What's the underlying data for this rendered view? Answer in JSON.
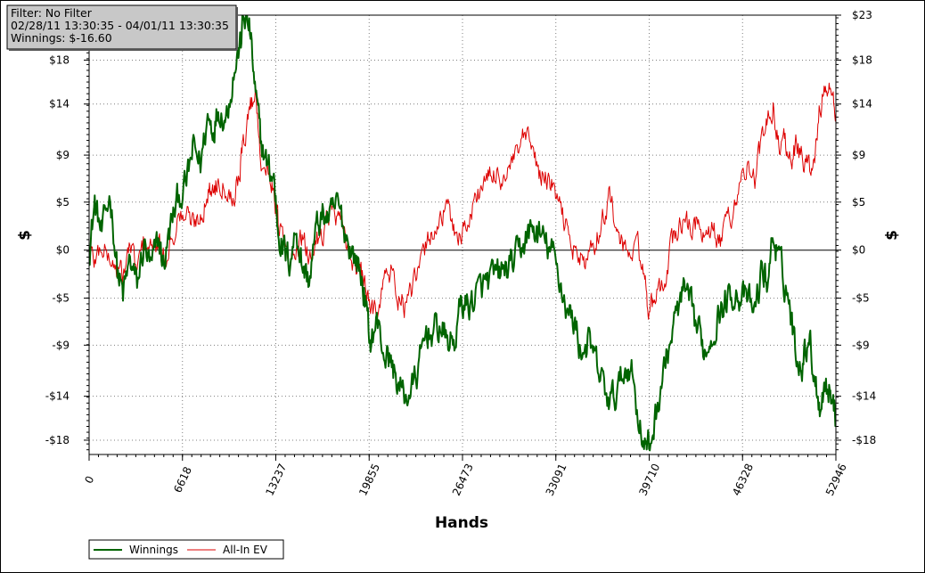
{
  "info_box": {
    "filter": "Filter: No Filter",
    "date_range": "02/28/11 13:30:35 - 04/01/11 13:30:35",
    "winnings": "Winnings: $-16.60"
  },
  "colors": {
    "winnings": "#006400",
    "allin_ev": "#dd0000",
    "grid": "#7f7f7f",
    "zero_line": "#000000",
    "info_bg": "#c8c8c8"
  },
  "chart_data": {
    "type": "line",
    "title": "",
    "xlabel": "Hands",
    "ylabel_left": "$",
    "ylabel_right": "$",
    "xlim": [
      0,
      52946
    ],
    "ylim": [
      -20,
      23
    ],
    "x_ticks": [
      0,
      6618,
      13237,
      19855,
      26473,
      33091,
      39710,
      46328,
      52946
    ],
    "y_ticks": [
      {
        "value": 23,
        "label": "$23"
      },
      {
        "value": 18.6,
        "label": "$18"
      },
      {
        "value": 14.3,
        "label": "$14"
      },
      {
        "value": 9.3,
        "label": "$9"
      },
      {
        "value": 4.7,
        "label": "$5"
      },
      {
        "value": 0,
        "label": "$0"
      },
      {
        "value": -4.7,
        "label": "-$5"
      },
      {
        "value": -9.3,
        "label": "-$9"
      },
      {
        "value": -14.3,
        "label": "-$14"
      },
      {
        "value": -18.6,
        "label": "-$18"
      }
    ],
    "grid": true,
    "legend_position": "bottom-left",
    "series": [
      {
        "name": "Winnings",
        "color": "#006400",
        "points": [
          [
            0,
            0
          ],
          [
            400,
            4.5
          ],
          [
            900,
            1.5
          ],
          [
            1500,
            5.5
          ],
          [
            2000,
            -2
          ],
          [
            2400,
            -4.5
          ],
          [
            2900,
            -1
          ],
          [
            3400,
            -3.5
          ],
          [
            3900,
            0.5
          ],
          [
            4400,
            -2
          ],
          [
            4900,
            1
          ],
          [
            5300,
            -1.5
          ],
          [
            5800,
            2.5
          ],
          [
            6300,
            5
          ],
          [
            6900,
            6.5
          ],
          [
            7400,
            10
          ],
          [
            7900,
            8.5
          ],
          [
            8400,
            13
          ],
          [
            8800,
            12
          ],
          [
            9200,
            14
          ],
          [
            9700,
            13
          ],
          [
            10200,
            17
          ],
          [
            10700,
            20
          ],
          [
            11000,
            23
          ],
          [
            11400,
            21.5
          ],
          [
            11800,
            15
          ],
          [
            12200,
            10.5
          ],
          [
            12700,
            8
          ],
          [
            13100,
            7
          ],
          [
            13400,
            2
          ],
          [
            13800,
            0
          ],
          [
            14200,
            -1
          ],
          [
            14700,
            2
          ],
          [
            15100,
            -1.5
          ],
          [
            15600,
            -3
          ],
          [
            16100,
            2
          ],
          [
            16600,
            3.5
          ],
          [
            17100,
            3
          ],
          [
            17600,
            4.5
          ],
          [
            18100,
            2
          ],
          [
            18600,
            0
          ],
          [
            19100,
            -1.5
          ],
          [
            19500,
            -4
          ],
          [
            19900,
            -9
          ],
          [
            20400,
            -7
          ],
          [
            20900,
            -10
          ],
          [
            21400,
            -11
          ],
          [
            21900,
            -13
          ],
          [
            22400,
            -14.5
          ],
          [
            22900,
            -13.5
          ],
          [
            23400,
            -11.5
          ],
          [
            23900,
            -8
          ],
          [
            24400,
            -8
          ],
          [
            24900,
            -7.5
          ],
          [
            25400,
            -9
          ],
          [
            25900,
            -9
          ],
          [
            26400,
            -5
          ],
          [
            26900,
            -5.5
          ],
          [
            27400,
            -4.5
          ],
          [
            27900,
            -3.5
          ],
          [
            28400,
            -3
          ],
          [
            28900,
            -2.5
          ],
          [
            29400,
            -2
          ],
          [
            29900,
            -1.5
          ],
          [
            30400,
            -0.5
          ],
          [
            30900,
            1
          ],
          [
            31400,
            2
          ],
          [
            31900,
            1.5
          ],
          [
            32400,
            0.5
          ],
          [
            32900,
            -0.5
          ],
          [
            33400,
            -3
          ],
          [
            33900,
            -6
          ],
          [
            34400,
            -7
          ],
          [
            34900,
            -10
          ],
          [
            35400,
            -9
          ],
          [
            35900,
            -11
          ],
          [
            36400,
            -13
          ],
          [
            36900,
            -15
          ],
          [
            37400,
            -14
          ],
          [
            37900,
            -12
          ],
          [
            38400,
            -11
          ],
          [
            38900,
            -16
          ],
          [
            39400,
            -19
          ],
          [
            39700,
            -19.5
          ],
          [
            40200,
            -16
          ],
          [
            40700,
            -12
          ],
          [
            41200,
            -9
          ],
          [
            41700,
            -6
          ],
          [
            42200,
            -4
          ],
          [
            42700,
            -6
          ],
          [
            43200,
            -8
          ],
          [
            43700,
            -10
          ],
          [
            44200,
            -8
          ],
          [
            44700,
            -6
          ],
          [
            45200,
            -5
          ],
          [
            45700,
            -4
          ],
          [
            46200,
            -4.5
          ],
          [
            46700,
            -5
          ],
          [
            47200,
            -6
          ],
          [
            47700,
            -2
          ],
          [
            48100,
            -3
          ],
          [
            48500,
            1.5
          ],
          [
            48900,
            -1
          ],
          [
            49300,
            -3
          ],
          [
            49700,
            -5.5
          ],
          [
            50100,
            -10
          ],
          [
            50600,
            -11
          ],
          [
            51000,
            -8
          ],
          [
            51400,
            -12
          ],
          [
            51800,
            -15
          ],
          [
            52200,
            -13
          ],
          [
            52600,
            -14
          ],
          [
            52946,
            -16.6
          ]
        ]
      },
      {
        "name": "All-In EV",
        "color": "#dd0000",
        "points": [
          [
            0,
            0
          ],
          [
            400,
            -1
          ],
          [
            900,
            0.5
          ],
          [
            1500,
            -1
          ],
          [
            2000,
            -2
          ],
          [
            2400,
            -2.5
          ],
          [
            2900,
            0.5
          ],
          [
            3400,
            -2
          ],
          [
            3900,
            1
          ],
          [
            4400,
            0
          ],
          [
            4900,
            0.5
          ],
          [
            5300,
            -1
          ],
          [
            5800,
            1
          ],
          [
            6300,
            3
          ],
          [
            6900,
            3.5
          ],
          [
            7400,
            2.5
          ],
          [
            7900,
            3.5
          ],
          [
            8400,
            5.5
          ],
          [
            8800,
            6
          ],
          [
            9200,
            7
          ],
          [
            9700,
            6.5
          ],
          [
            10200,
            5
          ],
          [
            10700,
            8
          ],
          [
            11000,
            11
          ],
          [
            11400,
            14
          ],
          [
            11800,
            15.5
          ],
          [
            12200,
            9
          ],
          [
            12700,
            7
          ],
          [
            13100,
            6.5
          ],
          [
            13400,
            2.5
          ],
          [
            13800,
            1
          ],
          [
            14200,
            -2
          ],
          [
            14700,
            0.5
          ],
          [
            15100,
            1
          ],
          [
            15600,
            -1
          ],
          [
            16100,
            1
          ],
          [
            16600,
            2
          ],
          [
            17100,
            4
          ],
          [
            17600,
            3
          ],
          [
            18100,
            1.5
          ],
          [
            18600,
            -1
          ],
          [
            19100,
            -2
          ],
          [
            19500,
            -3
          ],
          [
            19900,
            -6
          ],
          [
            20400,
            -5.5
          ],
          [
            20900,
            -3
          ],
          [
            21400,
            -2
          ],
          [
            21900,
            -4.5
          ],
          [
            22400,
            -5.5
          ],
          [
            22900,
            -4
          ],
          [
            23400,
            -2
          ],
          [
            23900,
            0.5
          ],
          [
            24400,
            2
          ],
          [
            24900,
            3
          ],
          [
            25400,
            4
          ],
          [
            25900,
            2
          ],
          [
            26400,
            1.5
          ],
          [
            26900,
            3
          ],
          [
            27400,
            5
          ],
          [
            27900,
            6.5
          ],
          [
            28400,
            7
          ],
          [
            28900,
            7.5
          ],
          [
            29400,
            7
          ],
          [
            29900,
            8
          ],
          [
            30400,
            9.5
          ],
          [
            30900,
            11
          ],
          [
            31400,
            10
          ],
          [
            31900,
            7.5
          ],
          [
            32400,
            7
          ],
          [
            32900,
            6
          ],
          [
            33400,
            4
          ],
          [
            33900,
            2
          ],
          [
            34400,
            0
          ],
          [
            34900,
            -1
          ],
          [
            35400,
            -1
          ],
          [
            35900,
            1
          ],
          [
            36400,
            3
          ],
          [
            36900,
            5.5
          ],
          [
            37400,
            2
          ],
          [
            37900,
            0
          ],
          [
            38400,
            -0.5
          ],
          [
            38900,
            0.5
          ],
          [
            39400,
            -3
          ],
          [
            39700,
            -6
          ],
          [
            40200,
            -5
          ],
          [
            40700,
            -3.5
          ],
          [
            41200,
            0
          ],
          [
            41700,
            2
          ],
          [
            42200,
            3
          ],
          [
            42700,
            2
          ],
          [
            43200,
            3
          ],
          [
            43700,
            0.5
          ],
          [
            44200,
            2
          ],
          [
            44700,
            0.5
          ],
          [
            45200,
            3
          ],
          [
            45700,
            4
          ],
          [
            46200,
            7
          ],
          [
            46700,
            8
          ],
          [
            47200,
            7
          ],
          [
            47700,
            11
          ],
          [
            48100,
            12
          ],
          [
            48500,
            14.5
          ],
          [
            48900,
            10
          ],
          [
            49300,
            11
          ],
          [
            49700,
            9
          ],
          [
            50100,
            10
          ],
          [
            50600,
            9
          ],
          [
            51000,
            8
          ],
          [
            51400,
            8
          ],
          [
            51800,
            14
          ],
          [
            52200,
            16
          ],
          [
            52600,
            15
          ],
          [
            52946,
            13.5
          ]
        ]
      }
    ]
  }
}
